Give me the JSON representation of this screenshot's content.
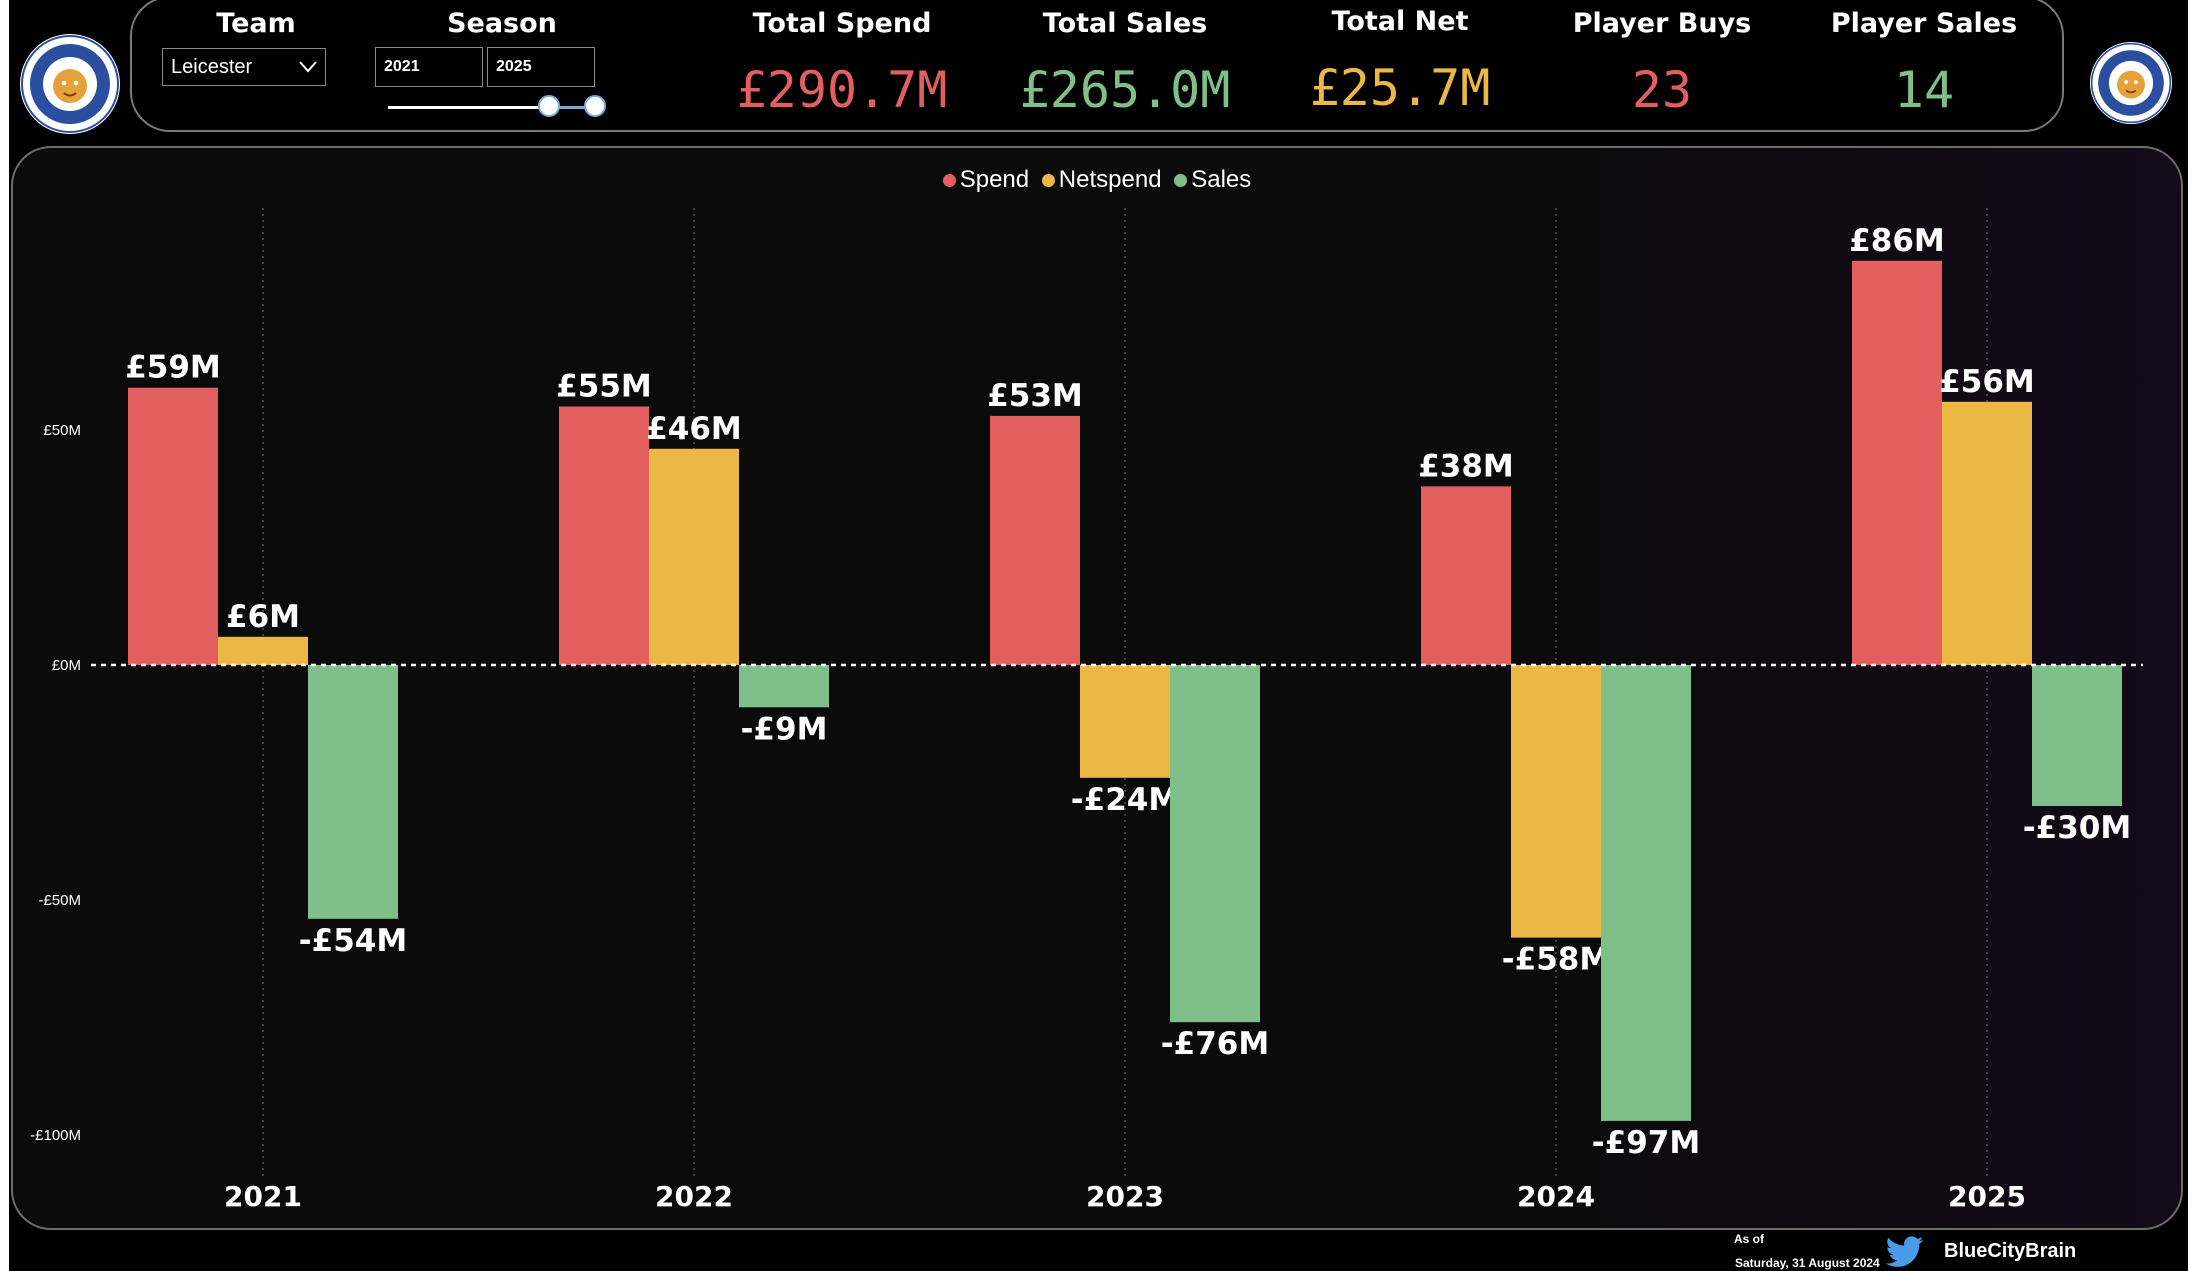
{
  "filters": {
    "team_label": "Team",
    "team_value": "Leicester",
    "season_label": "Season",
    "season_start": "2021",
    "season_end": "2025"
  },
  "kpis": [
    {
      "title": "Total Spend",
      "value": "£290.7M",
      "color": "#e35f5f"
    },
    {
      "title": "Total Sales",
      "value": "£265.0M",
      "color": "#7fc08a"
    },
    {
      "title": "Total Net",
      "value": "£25.7M",
      "color": "#ecb845"
    },
    {
      "title": "Player Buys",
      "value": "23",
      "color": "#e35f5f"
    },
    {
      "title": "Player Sales",
      "value": "14",
      "color": "#7fc08a"
    }
  ],
  "chart_data": {
    "type": "bar",
    "categories": [
      "2021",
      "2022",
      "2023",
      "2024",
      "2025"
    ],
    "series": [
      {
        "name": "Spend",
        "color": "#e35f5f",
        "values": [
          59,
          55,
          53,
          38,
          86
        ],
        "labels": [
          "£59M",
          "£55M",
          "£53M",
          "£38M",
          "£86M"
        ]
      },
      {
        "name": "Netspend",
        "color": "#ecb845",
        "values": [
          6,
          46,
          -24,
          -58,
          56
        ],
        "labels": [
          "£6M",
          "£46M",
          "-£24M",
          "-£58M",
          "£56M"
        ]
      },
      {
        "name": "Sales",
        "color": "#7fc08a",
        "values": [
          -54,
          -9,
          -76,
          -97,
          -30
        ],
        "labels": [
          "-£54M",
          "-£9M",
          "-£76M",
          "-£97M",
          "-£30M"
        ]
      }
    ],
    "ylim": [
      -100,
      100
    ],
    "yticks": [
      {
        "value": 50,
        "label": "£50M"
      },
      {
        "value": 0,
        "label": "£0M"
      },
      {
        "value": -50,
        "label": "-£50M"
      },
      {
        "value": -100,
        "label": "-£100M"
      }
    ],
    "legend_position": "top-center",
    "zero_line": "dashed"
  },
  "footer": {
    "as_of_label": "As of",
    "as_of_date": "Saturday, 31 August 2024",
    "handle": "BlueCityBrain",
    "icon": "twitter-bird-icon"
  },
  "crest": {
    "icon": "leicester-city-crest-icon"
  }
}
